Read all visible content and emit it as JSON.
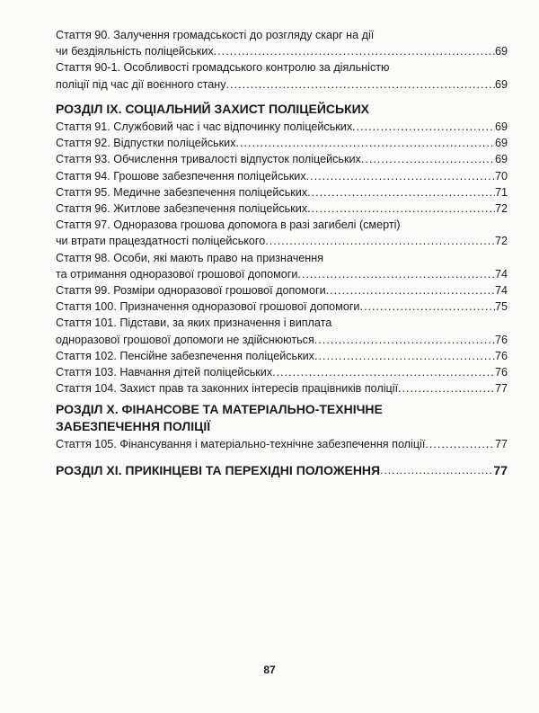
{
  "toc": [
    {
      "type": "entry",
      "lines": [
        "Стаття 90. Залучення громадськості до розгляду скарг на дії",
        "чи бездіяльність поліцейських"
      ],
      "page": "69"
    },
    {
      "type": "entry",
      "lines": [
        "Стаття 90-1. Особливості громадського контролю за діяльністю",
        "поліції під час дії воєнного стану"
      ],
      "page": "69"
    },
    {
      "type": "heading",
      "lines": [
        "РОЗДІЛ IX. СОЦІАЛЬНИЙ ЗАХИСТ ПОЛІЦЕЙСЬКИХ"
      ],
      "page": ""
    },
    {
      "type": "entry",
      "lines": [
        "Стаття 91. Службовий час і час відпочинку поліцейських"
      ],
      "page": "69"
    },
    {
      "type": "entry",
      "lines": [
        "Стаття 92. Відпустки поліцейських"
      ],
      "page": "69"
    },
    {
      "type": "entry",
      "lines": [
        "Стаття 93. Обчислення тривалості відпусток поліцейських"
      ],
      "page": "69"
    },
    {
      "type": "entry",
      "lines": [
        "Стаття 94. Грошове забезпечення поліцейських"
      ],
      "page": "70"
    },
    {
      "type": "entry",
      "lines": [
        "Стаття 95. Медичне забезпечення поліцейських"
      ],
      "page": "71"
    },
    {
      "type": "entry",
      "lines": [
        "Стаття 96. Житлове забезпечення поліцейських"
      ],
      "page": "72"
    },
    {
      "type": "entry",
      "lines": [
        "Стаття 97. Одноразова грошова допомога в разі загибелі (смерті)",
        "чи втрати працездатності поліцейського"
      ],
      "page": "72"
    },
    {
      "type": "entry",
      "lines": [
        "Стаття 98. Особи, які мають право на призначення",
        "та отримання одноразової грошової допомоги"
      ],
      "page": "74"
    },
    {
      "type": "entry",
      "lines": [
        "Стаття 99. Розміри одноразової грошової допомоги"
      ],
      "page": "74"
    },
    {
      "type": "entry",
      "lines": [
        "Стаття 100. Призначення одноразової грошової допомоги"
      ],
      "page": "75"
    },
    {
      "type": "entry",
      "lines": [
        "Стаття 101. Підстави, за яких призначення і виплата",
        "одноразової грошової допомоги не здійснюються"
      ],
      "page": "76"
    },
    {
      "type": "entry",
      "lines": [
        "Стаття 102. Пенсійне забезпечення поліцейських"
      ],
      "page": "76"
    },
    {
      "type": "entry",
      "lines": [
        "Стаття 103. Навчання дітей поліцейських"
      ],
      "page": "76"
    },
    {
      "type": "entry",
      "lines": [
        "Стаття 104. Захист прав та законних інтересів працівників поліції"
      ],
      "page": "77"
    },
    {
      "type": "heading",
      "lines": [
        "РОЗДІЛ X. ФІНАНСОВЕ ТА МАТЕРІАЛЬНО-ТЕХНІЧНЕ",
        "ЗАБЕЗПЕЧЕННЯ ПОЛІЦІЇ"
      ],
      "page": ""
    },
    {
      "type": "entry",
      "lines": [
        "Стаття 105. Фінансування і матеріально-технічне забезпечення поліції"
      ],
      "page": "77"
    },
    {
      "type": "heading",
      "lines": [
        "РОЗДІЛ XI. ПРИКІНЦЕВІ ТА ПЕРЕХІДНІ ПОЛОЖЕННЯ"
      ],
      "page": "77"
    }
  ],
  "page_number": "87"
}
